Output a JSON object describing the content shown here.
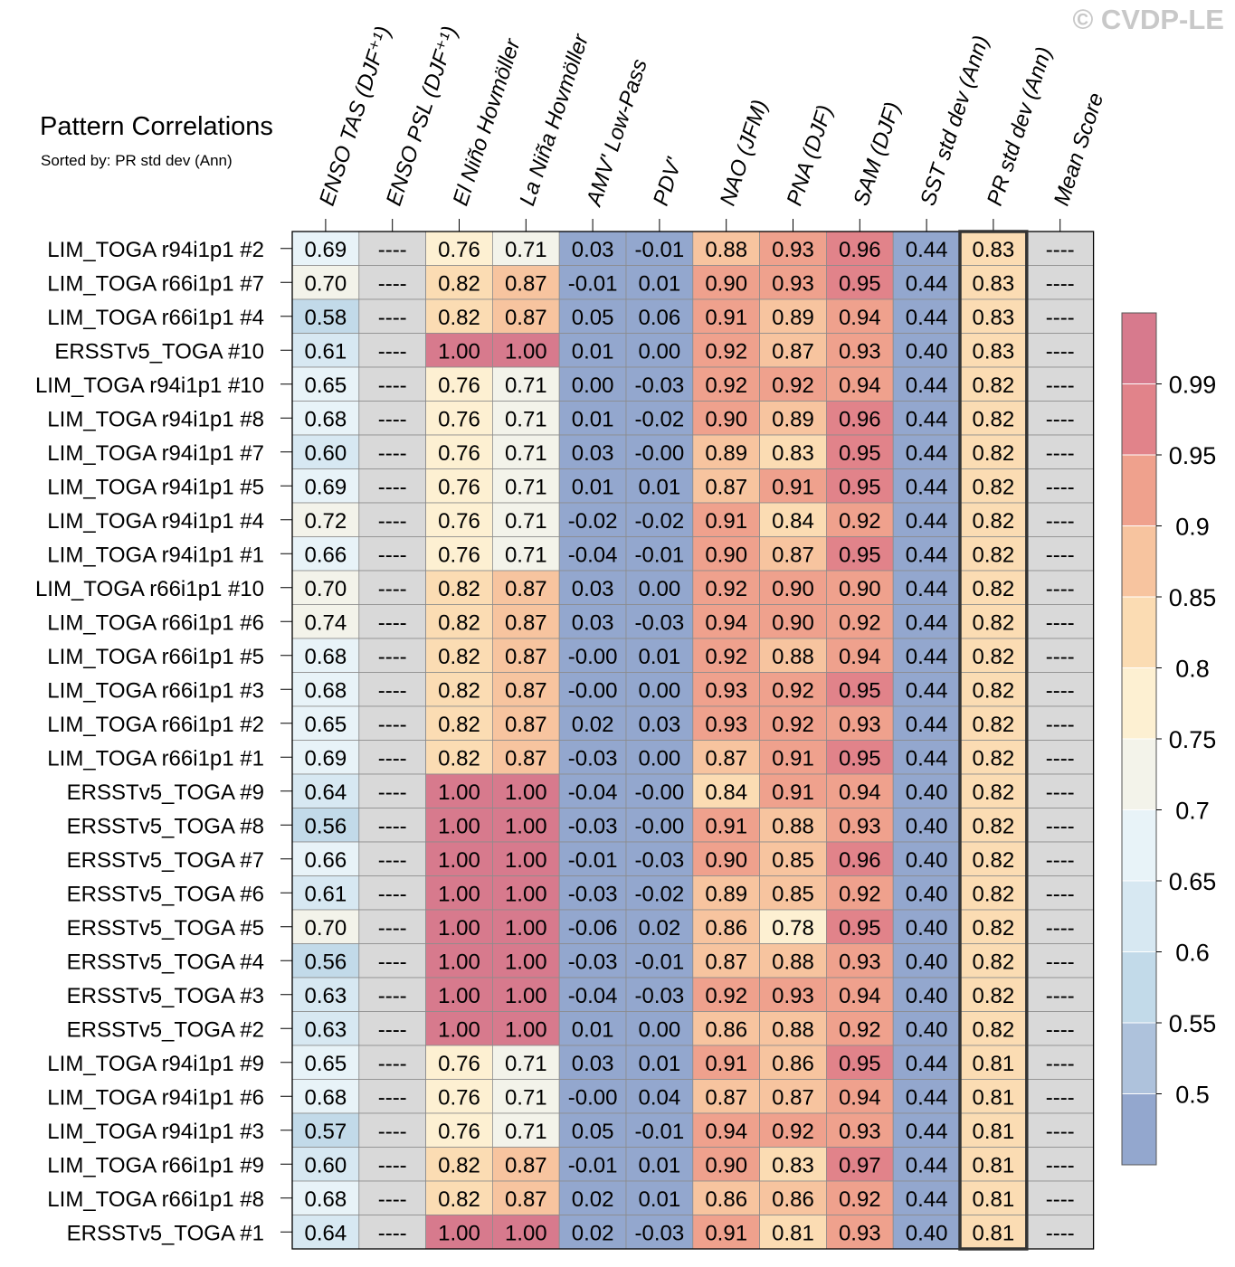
{
  "title": "Pattern Correlations",
  "subtitle": "Sorted by: PR std dev (Ann)",
  "copyright": "© CVDP-LE",
  "chart_data": {
    "type": "heatmap",
    "columns": [
      "ENSO TAS (DJF⁺¹)",
      "ENSO PSL (DJF⁺¹)",
      "El Niño Hovmöller",
      "La Niña Hovmöller",
      "AMV' Low-Pass",
      "PDV'",
      "NAO (JFM)",
      "PNA (DJF)",
      "SAM (DJF)",
      "SST std dev (Ann)",
      "PR std dev (Ann)",
      "Mean Score"
    ],
    "sorted_column": "PR std dev (Ann)",
    "missing_label": "----",
    "rows": [
      {
        "label": "LIM_TOGA r94i1p1 #2",
        "values": [
          "0.69",
          null,
          "0.76",
          "0.71",
          "0.03",
          "-0.01",
          "0.88",
          "0.93",
          "0.96",
          "0.44",
          "0.83",
          null
        ]
      },
      {
        "label": "LIM_TOGA r66i1p1 #7",
        "values": [
          "0.70",
          null,
          "0.82",
          "0.87",
          "-0.01",
          "0.01",
          "0.90",
          "0.93",
          "0.95",
          "0.44",
          "0.83",
          null
        ]
      },
      {
        "label": "LIM_TOGA r66i1p1 #4",
        "values": [
          "0.58",
          null,
          "0.82",
          "0.87",
          "0.05",
          "0.06",
          "0.91",
          "0.89",
          "0.94",
          "0.44",
          "0.83",
          null
        ]
      },
      {
        "label": "ERSSTv5_TOGA #10",
        "values": [
          "0.61",
          null,
          "1.00",
          "1.00",
          "0.01",
          "0.00",
          "0.92",
          "0.87",
          "0.93",
          "0.40",
          "0.83",
          null
        ]
      },
      {
        "label": "LIM_TOGA r94i1p1 #10",
        "values": [
          "0.65",
          null,
          "0.76",
          "0.71",
          "0.00",
          "-0.03",
          "0.92",
          "0.92",
          "0.94",
          "0.44",
          "0.82",
          null
        ]
      },
      {
        "label": "LIM_TOGA r94i1p1 #8",
        "values": [
          "0.68",
          null,
          "0.76",
          "0.71",
          "0.01",
          "-0.02",
          "0.90",
          "0.89",
          "0.96",
          "0.44",
          "0.82",
          null
        ]
      },
      {
        "label": "LIM_TOGA r94i1p1 #7",
        "values": [
          "0.60",
          null,
          "0.76",
          "0.71",
          "0.03",
          "-0.00",
          "0.89",
          "0.83",
          "0.95",
          "0.44",
          "0.82",
          null
        ]
      },
      {
        "label": "LIM_TOGA r94i1p1 #5",
        "values": [
          "0.69",
          null,
          "0.76",
          "0.71",
          "0.01",
          "0.01",
          "0.87",
          "0.91",
          "0.95",
          "0.44",
          "0.82",
          null
        ]
      },
      {
        "label": "LIM_TOGA r94i1p1 #4",
        "values": [
          "0.72",
          null,
          "0.76",
          "0.71",
          "-0.02",
          "-0.02",
          "0.91",
          "0.84",
          "0.92",
          "0.44",
          "0.82",
          null
        ]
      },
      {
        "label": "LIM_TOGA r94i1p1 #1",
        "values": [
          "0.66",
          null,
          "0.76",
          "0.71",
          "-0.04",
          "-0.01",
          "0.90",
          "0.87",
          "0.95",
          "0.44",
          "0.82",
          null
        ]
      },
      {
        "label": "LIM_TOGA r66i1p1 #10",
        "values": [
          "0.70",
          null,
          "0.82",
          "0.87",
          "0.03",
          "0.00",
          "0.92",
          "0.90",
          "0.90",
          "0.44",
          "0.82",
          null
        ]
      },
      {
        "label": "LIM_TOGA r66i1p1 #6",
        "values": [
          "0.74",
          null,
          "0.82",
          "0.87",
          "0.03",
          "-0.03",
          "0.94",
          "0.90",
          "0.92",
          "0.44",
          "0.82",
          null
        ]
      },
      {
        "label": "LIM_TOGA r66i1p1 #5",
        "values": [
          "0.68",
          null,
          "0.82",
          "0.87",
          "-0.00",
          "0.01",
          "0.92",
          "0.88",
          "0.94",
          "0.44",
          "0.82",
          null
        ]
      },
      {
        "label": "LIM_TOGA r66i1p1 #3",
        "values": [
          "0.68",
          null,
          "0.82",
          "0.87",
          "-0.00",
          "0.00",
          "0.93",
          "0.92",
          "0.95",
          "0.44",
          "0.82",
          null
        ]
      },
      {
        "label": "LIM_TOGA r66i1p1 #2",
        "values": [
          "0.65",
          null,
          "0.82",
          "0.87",
          "0.02",
          "0.03",
          "0.93",
          "0.92",
          "0.93",
          "0.44",
          "0.82",
          null
        ]
      },
      {
        "label": "LIM_TOGA r66i1p1 #1",
        "values": [
          "0.69",
          null,
          "0.82",
          "0.87",
          "-0.03",
          "0.00",
          "0.87",
          "0.91",
          "0.95",
          "0.44",
          "0.82",
          null
        ]
      },
      {
        "label": "ERSSTv5_TOGA #9",
        "values": [
          "0.64",
          null,
          "1.00",
          "1.00",
          "-0.04",
          "-0.00",
          "0.84",
          "0.91",
          "0.94",
          "0.40",
          "0.82",
          null
        ]
      },
      {
        "label": "ERSSTv5_TOGA #8",
        "values": [
          "0.56",
          null,
          "1.00",
          "1.00",
          "-0.03",
          "-0.00",
          "0.91",
          "0.88",
          "0.93",
          "0.40",
          "0.82",
          null
        ]
      },
      {
        "label": "ERSSTv5_TOGA #7",
        "values": [
          "0.66",
          null,
          "1.00",
          "1.00",
          "-0.01",
          "-0.03",
          "0.90",
          "0.85",
          "0.96",
          "0.40",
          "0.82",
          null
        ]
      },
      {
        "label": "ERSSTv5_TOGA #6",
        "values": [
          "0.61",
          null,
          "1.00",
          "1.00",
          "-0.03",
          "-0.02",
          "0.89",
          "0.85",
          "0.92",
          "0.40",
          "0.82",
          null
        ]
      },
      {
        "label": "ERSSTv5_TOGA #5",
        "values": [
          "0.70",
          null,
          "1.00",
          "1.00",
          "-0.06",
          "0.02",
          "0.86",
          "0.78",
          "0.95",
          "0.40",
          "0.82",
          null
        ]
      },
      {
        "label": "ERSSTv5_TOGA #4",
        "values": [
          "0.56",
          null,
          "1.00",
          "1.00",
          "-0.03",
          "-0.01",
          "0.87",
          "0.88",
          "0.93",
          "0.40",
          "0.82",
          null
        ]
      },
      {
        "label": "ERSSTv5_TOGA #3",
        "values": [
          "0.63",
          null,
          "1.00",
          "1.00",
          "-0.04",
          "-0.03",
          "0.92",
          "0.93",
          "0.94",
          "0.40",
          "0.82",
          null
        ]
      },
      {
        "label": "ERSSTv5_TOGA #2",
        "values": [
          "0.63",
          null,
          "1.00",
          "1.00",
          "0.01",
          "0.00",
          "0.86",
          "0.88",
          "0.92",
          "0.40",
          "0.82",
          null
        ]
      },
      {
        "label": "LIM_TOGA r94i1p1 #9",
        "values": [
          "0.65",
          null,
          "0.76",
          "0.71",
          "0.03",
          "0.01",
          "0.91",
          "0.86",
          "0.95",
          "0.44",
          "0.81",
          null
        ]
      },
      {
        "label": "LIM_TOGA r94i1p1 #6",
        "values": [
          "0.68",
          null,
          "0.76",
          "0.71",
          "-0.00",
          "0.04",
          "0.87",
          "0.87",
          "0.94",
          "0.44",
          "0.81",
          null
        ]
      },
      {
        "label": "LIM_TOGA r94i1p1 #3",
        "values": [
          "0.57",
          null,
          "0.76",
          "0.71",
          "0.05",
          "-0.01",
          "0.94",
          "0.92",
          "0.93",
          "0.44",
          "0.81",
          null
        ]
      },
      {
        "label": "LIM_TOGA r66i1p1 #9",
        "values": [
          "0.60",
          null,
          "0.82",
          "0.87",
          "-0.01",
          "0.01",
          "0.90",
          "0.83",
          "0.97",
          "0.44",
          "0.81",
          null
        ]
      },
      {
        "label": "LIM_TOGA r66i1p1 #8",
        "values": [
          "0.68",
          null,
          "0.82",
          "0.87",
          "0.02",
          "0.01",
          "0.86",
          "0.86",
          "0.92",
          "0.44",
          "0.81",
          null
        ]
      },
      {
        "label": "ERSSTv5_TOGA #1",
        "values": [
          "0.64",
          null,
          "1.00",
          "1.00",
          "0.02",
          "-0.03",
          "0.91",
          "0.81",
          "0.93",
          "0.40",
          "0.81",
          null
        ]
      }
    ],
    "colorbar": {
      "levels": [
        0.5,
        0.55,
        0.6,
        0.65,
        0.7,
        0.75,
        0.8,
        0.85,
        0.9,
        0.95,
        0.99
      ],
      "tick_labels": [
        "0.5",
        "0.55",
        "0.6",
        "0.65",
        "0.7",
        "0.75",
        "0.8",
        "0.85",
        "0.9",
        "0.95",
        "0.99"
      ],
      "colors": [
        "#93a7ce",
        "#aec2dc",
        "#c2dae9",
        "#d7e8f2",
        "#e8f3f8",
        "#f3f3ea",
        "#fdf0d2",
        "#fbdcb3",
        "#f7c49f",
        "#efa18d",
        "#e1838a",
        "#d77a8d"
      ],
      "missing_color": "#d9d9d9"
    }
  }
}
